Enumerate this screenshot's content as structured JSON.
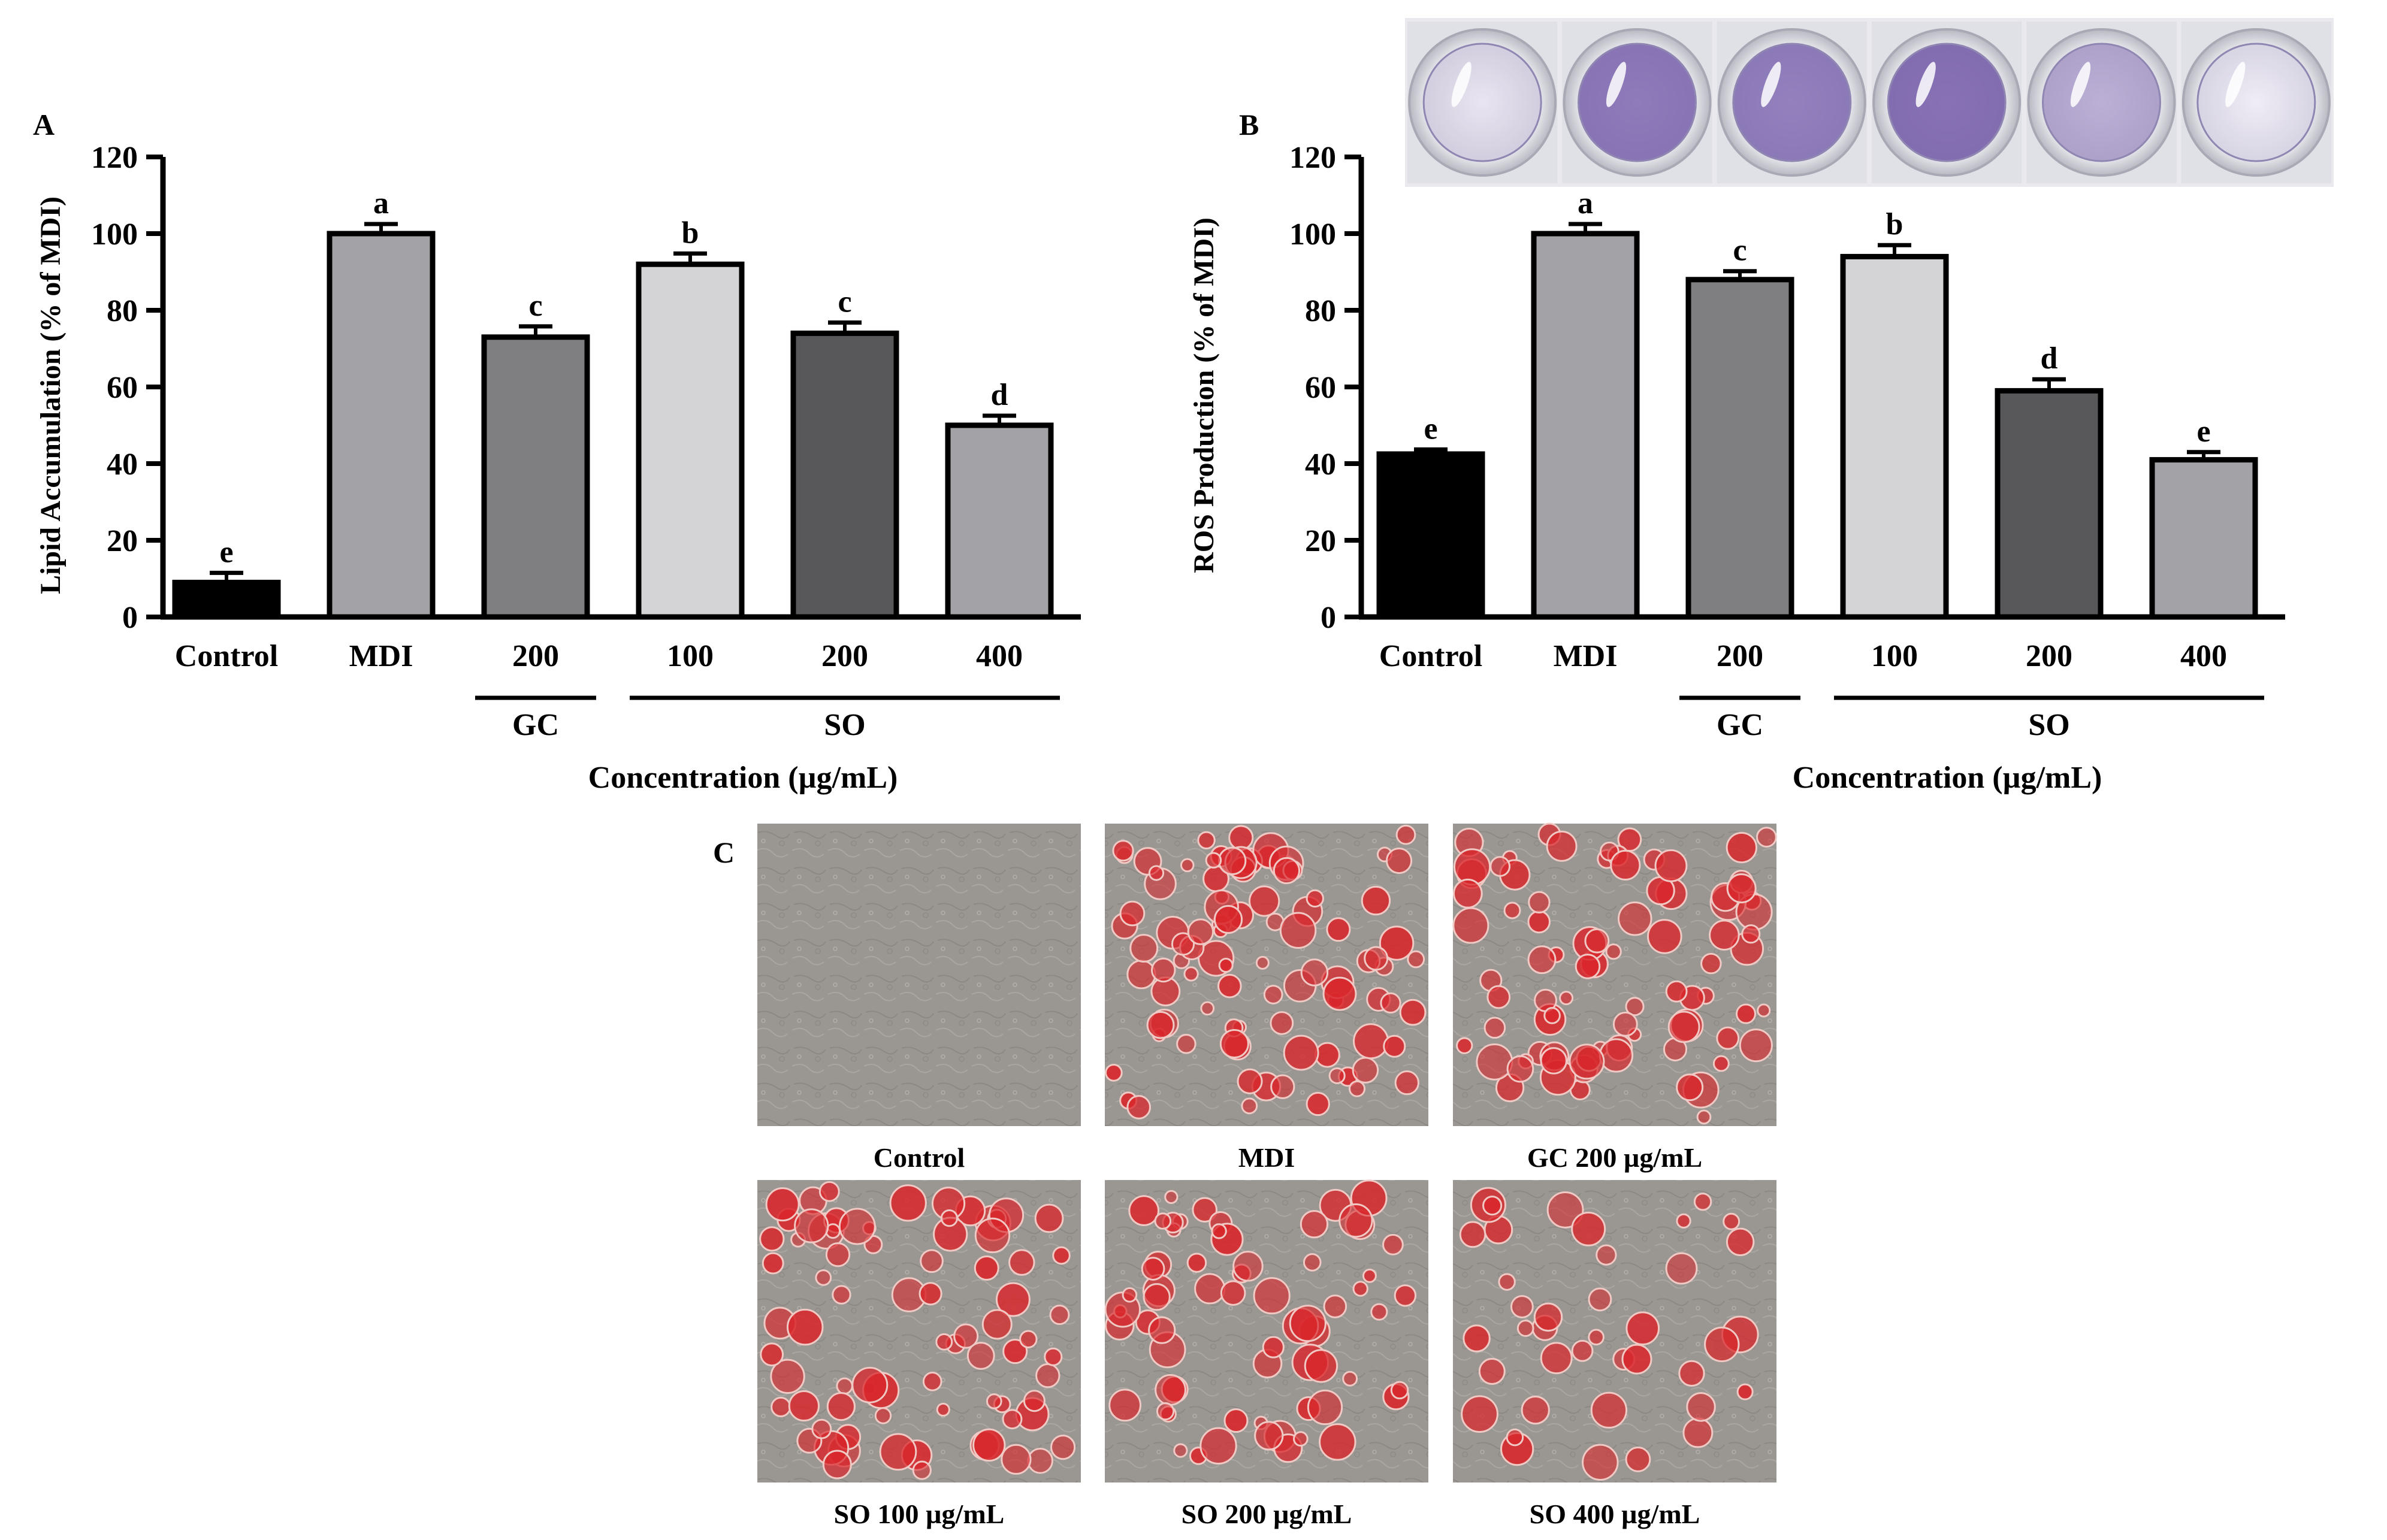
{
  "panel_labels": {
    "a": "A",
    "b": "B",
    "c": "C"
  },
  "chart_data": [
    {
      "id": "A",
      "type": "bar",
      "title": "",
      "ylabel": "Lipid Accumulation (% of MDI)",
      "xlabel": "Concentration (µg/mL)",
      "ylim": [
        0,
        120
      ],
      "yticks": [
        "0",
        "20",
        "40",
        "60",
        "80",
        "100",
        "120"
      ],
      "categories": [
        "Control",
        "MDI",
        "200",
        "100",
        "200",
        "400"
      ],
      "values": [
        9,
        100,
        73,
        92,
        74,
        50
      ],
      "errors": [
        2.5,
        2.5,
        2.8,
        2.8,
        2.8,
        2.5
      ],
      "significance": [
        "e",
        "a",
        "c",
        "b",
        "c",
        "d"
      ],
      "bar_colors": [
        "#000000",
        "#a3a3a7",
        "#7f7f82",
        "#d4d4d6",
        "#58585a",
        "#a3a3a7"
      ],
      "groups": [
        {
          "label": "GC",
          "bars": [
            2,
            2
          ]
        },
        {
          "label": "SO",
          "bars": [
            3,
            5
          ]
        }
      ]
    },
    {
      "id": "B",
      "type": "bar",
      "title": "",
      "ylabel": "ROS Production (% of MDI)",
      "xlabel": "Concentration (µg/mL)",
      "ylim": [
        0,
        120
      ],
      "yticks": [
        "0",
        "20",
        "40",
        "60",
        "80",
        "100",
        "120"
      ],
      "categories": [
        "Control",
        "MDI",
        "200",
        "100",
        "200",
        "400"
      ],
      "values": [
        42.5,
        100,
        88,
        94,
        59,
        41
      ],
      "errors": [
        1.2,
        2.5,
        2.2,
        3,
        3,
        2
      ],
      "significance": [
        "e",
        "a",
        "c",
        "b",
        "d",
        "e"
      ],
      "bar_colors": [
        "#000000",
        "#a3a3a7",
        "#7f7f82",
        "#d4d4d6",
        "#58585a",
        "#a3a3a7"
      ],
      "groups": [
        {
          "label": "GC",
          "bars": [
            2,
            2
          ]
        },
        {
          "label": "SO",
          "bars": [
            3,
            5
          ]
        }
      ]
    }
  ],
  "well_plate": {
    "stain_intensity": [
      0.15,
      0.75,
      0.72,
      0.8,
      0.45,
      0.1
    ],
    "stain_color": "#6a4fa3"
  },
  "micrographs": {
    "captions": [
      "Control",
      "MDI",
      "GC 200 µg/mL",
      "SO 100 µg/mL",
      "SO 200 µg/mL",
      "SO 400 µg/mL"
    ],
    "lipid_density": [
      0,
      0.85,
      0.75,
      0.7,
      0.6,
      0.35
    ],
    "stain_color": "#d9262b",
    "background_color": "#9a9792"
  }
}
